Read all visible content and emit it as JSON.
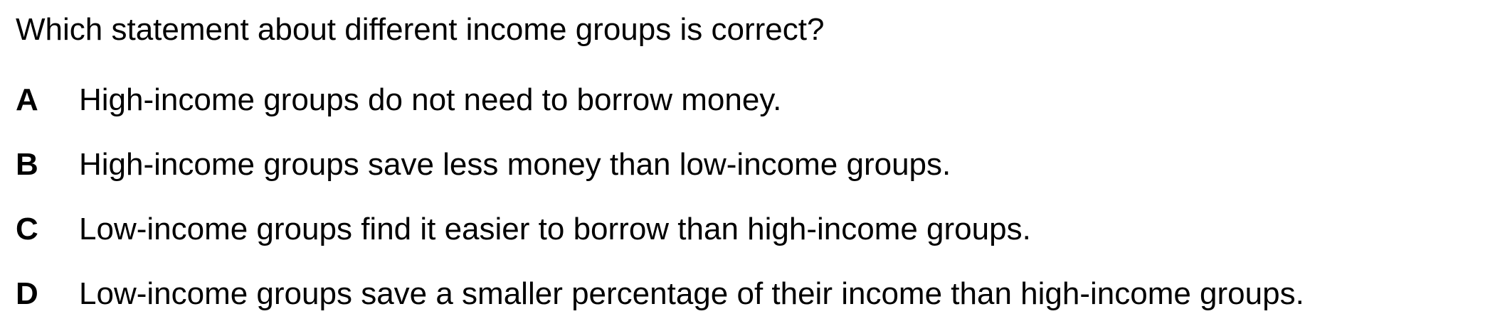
{
  "question": "Which statement about different income groups is correct?",
  "options": [
    {
      "letter": "A",
      "text": "High-income groups do not need to borrow money."
    },
    {
      "letter": "B",
      "text": "High-income groups save less money than low-income groups."
    },
    {
      "letter": "C",
      "text": "Low-income groups find it easier to borrow than high-income groups."
    },
    {
      "letter": "D",
      "text": "Low-income groups save a smaller percentage of their income than high-income groups."
    }
  ]
}
